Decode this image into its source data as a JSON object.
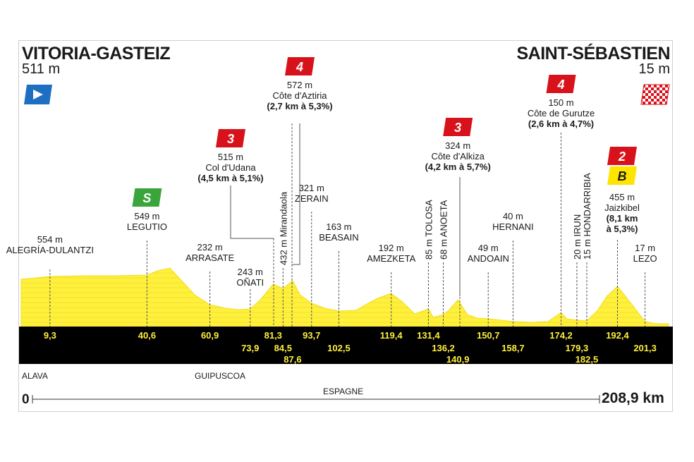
{
  "header": {
    "start_name": "VITORIA-GASTEIZ",
    "start_alt": "511 m",
    "finish_name": "SAINT-SÉBASTIEN",
    "finish_alt": "15 m"
  },
  "regions": [
    "ALAVA",
    "GUIPUSCOA"
  ],
  "country": "ESPAGNE",
  "distance": {
    "start": "0",
    "end": "208,9 km"
  },
  "colors": {
    "profile_fill": "#fff03c",
    "profile_line": "#f2dd1c",
    "band": "#000000",
    "cat4": "#d8121a",
    "cat3": "#d8121a",
    "cat2": "#d8121a",
    "sprint": "#3aa53a",
    "bonus": "#ffe400",
    "start_flag": "#1e6fc2"
  },
  "chart_data": {
    "type": "area",
    "x_range": [
      0,
      208.9
    ],
    "profile_km": [
      0,
      9.3,
      20,
      30,
      40.6,
      44,
      48,
      52,
      56,
      60.9,
      66,
      70,
      73.9,
      77,
      81.3,
      84.5,
      87.6,
      90,
      93.7,
      98,
      102.5,
      108,
      112,
      115,
      119.4,
      123,
      127,
      131.4,
      133,
      136.2,
      138,
      140.9,
      144,
      147,
      150.7,
      155,
      158.7,
      165,
      170,
      174.2,
      176,
      179.3,
      182.5,
      186,
      189,
      192.4,
      195,
      198,
      201.3,
      205,
      208.9
    ],
    "km_markers": [
      {
        "km": 9.3,
        "label": "9,3",
        "row": 1
      },
      {
        "km": 40.6,
        "label": "40,6",
        "row": 1
      },
      {
        "km": 60.9,
        "label": "60,9",
        "row": 1
      },
      {
        "km": 73.9,
        "label": "73,9",
        "row": 2
      },
      {
        "km": 81.3,
        "label": "81,3",
        "row": 1
      },
      {
        "km": 84.5,
        "label": "84,5",
        "row": 2
      },
      {
        "km": 87.6,
        "label": "87,6",
        "row": 3
      },
      {
        "km": 93.7,
        "label": "93,7",
        "row": 1
      },
      {
        "km": 102.5,
        "label": "102,5",
        "row": 2
      },
      {
        "km": 119.4,
        "label": "119,4",
        "row": 1
      },
      {
        "km": 131.4,
        "label": "131,4",
        "row": 1
      },
      {
        "km": 136.2,
        "label": "136,2",
        "row": 2
      },
      {
        "km": 140.9,
        "label": "140,9",
        "row": 3
      },
      {
        "km": 150.7,
        "label": "150,7",
        "row": 1
      },
      {
        "km": 158.7,
        "label": "158,7",
        "row": 2
      },
      {
        "km": 174.2,
        "label": "174,2",
        "row": 1
      },
      {
        "km": 179.3,
        "label": "179,3",
        "row": 2
      },
      {
        "km": 182.5,
        "label": "182,5",
        "row": 3
      },
      {
        "km": 192.4,
        "label": "192,4",
        "row": 1
      },
      {
        "km": 201.3,
        "label": "201,3",
        "row": 2
      }
    ],
    "points": [
      {
        "km": 9.3,
        "lines": [
          "554 m",
          "ALEGRÍA-DULANTZI"
        ]
      },
      {
        "km": 40.6,
        "lines": [
          "549 m",
          "LEGUTIO"
        ],
        "badge": {
          "kind": "sprint",
          "text": "S"
        }
      },
      {
        "km": 60.9,
        "lines": [
          "232 m",
          "ARRASATE"
        ]
      },
      {
        "km": 73.9,
        "lines": [
          "243 m",
          "OÑATI"
        ]
      },
      {
        "km": 81.3,
        "lines": [
          "515 m",
          "Col d'Udana",
          "(4,5 km à 5,1%)"
        ],
        "bold_last": true,
        "badge": {
          "kind": "cat3",
          "text": "3"
        }
      },
      {
        "km": 84.5,
        "vertical": "432 m Mirandaola"
      },
      {
        "km": 87.6,
        "lines": [
          "572 m",
          "Côte d'Aztiria",
          "(2,7 km à 5,3%)"
        ],
        "bold_last": true,
        "badge": {
          "kind": "cat4",
          "text": "4"
        }
      },
      {
        "km": 93.7,
        "lines": [
          "321 m",
          "ZERAIN"
        ]
      },
      {
        "km": 102.5,
        "lines": [
          "163 m",
          "BEASAIN"
        ]
      },
      {
        "km": 119.4,
        "lines": [
          "192 m",
          "AMEZKETA"
        ]
      },
      {
        "km": 131.4,
        "vertical": "85 m TOLOSA"
      },
      {
        "km": 136.2,
        "vertical": "68 m ANOETA"
      },
      {
        "km": 140.9,
        "lines": [
          "324 m",
          "Côte d'Alkiza",
          "(4,2 km à 5,7%)"
        ],
        "bold_last": true,
        "badge": {
          "kind": "cat3",
          "text": "3"
        }
      },
      {
        "km": 150.7,
        "lines": [
          "49 m",
          "ANDOAIN"
        ]
      },
      {
        "km": 158.7,
        "lines": [
          "40 m",
          "HERNANI"
        ]
      },
      {
        "km": 174.2,
        "lines": [
          "150 m",
          "Côte de Gurutze",
          "(2,6 km à 4,7%)"
        ],
        "bold_last": true,
        "badge": {
          "kind": "cat4",
          "text": "4"
        }
      },
      {
        "km": 179.3,
        "vertical": "20 m IRUN"
      },
      {
        "km": 182.5,
        "vertical": "15 m HONDARRIBIA"
      },
      {
        "km": 192.4,
        "lines": [
          "455 m",
          "Jaizkibel",
          "(8,1 km",
          "à 5,3%)"
        ],
        "bold_from": 2,
        "badge": {
          "kind": "cat2",
          "text": "2"
        },
        "badge2": {
          "kind": "bonus",
          "text": "B"
        }
      },
      {
        "km": 201.3,
        "lines": [
          "17 m",
          "LEZO"
        ]
      }
    ]
  }
}
